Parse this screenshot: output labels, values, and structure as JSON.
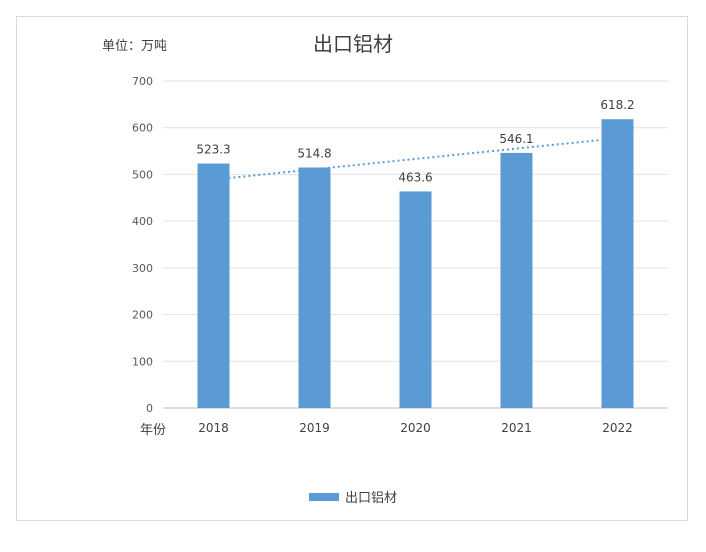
{
  "chart_data": {
    "type": "bar",
    "title": "出口铝材",
    "unit_label": "单位：万吨",
    "xlabel": "年份",
    "ylabel": "",
    "categories": [
      "2018",
      "2019",
      "2020",
      "2021",
      "2022"
    ],
    "series": [
      {
        "name": "出口铝材",
        "values": [
          523.3,
          514.8,
          463.6,
          546.1,
          618.2
        ],
        "color": "#5b9bd5"
      }
    ],
    "data_labels": [
      "523.3",
      "514.8",
      "463.6",
      "546.1",
      "618.2"
    ],
    "ylim": [
      0,
      700
    ],
    "yticks": [
      "0",
      "100",
      "200",
      "300",
      "400",
      "500",
      "600",
      "700"
    ],
    "trendline": {
      "type": "linear",
      "style": "dotted",
      "color": "#5b9bd5"
    },
    "grid": true,
    "legend_position": "bottom"
  }
}
